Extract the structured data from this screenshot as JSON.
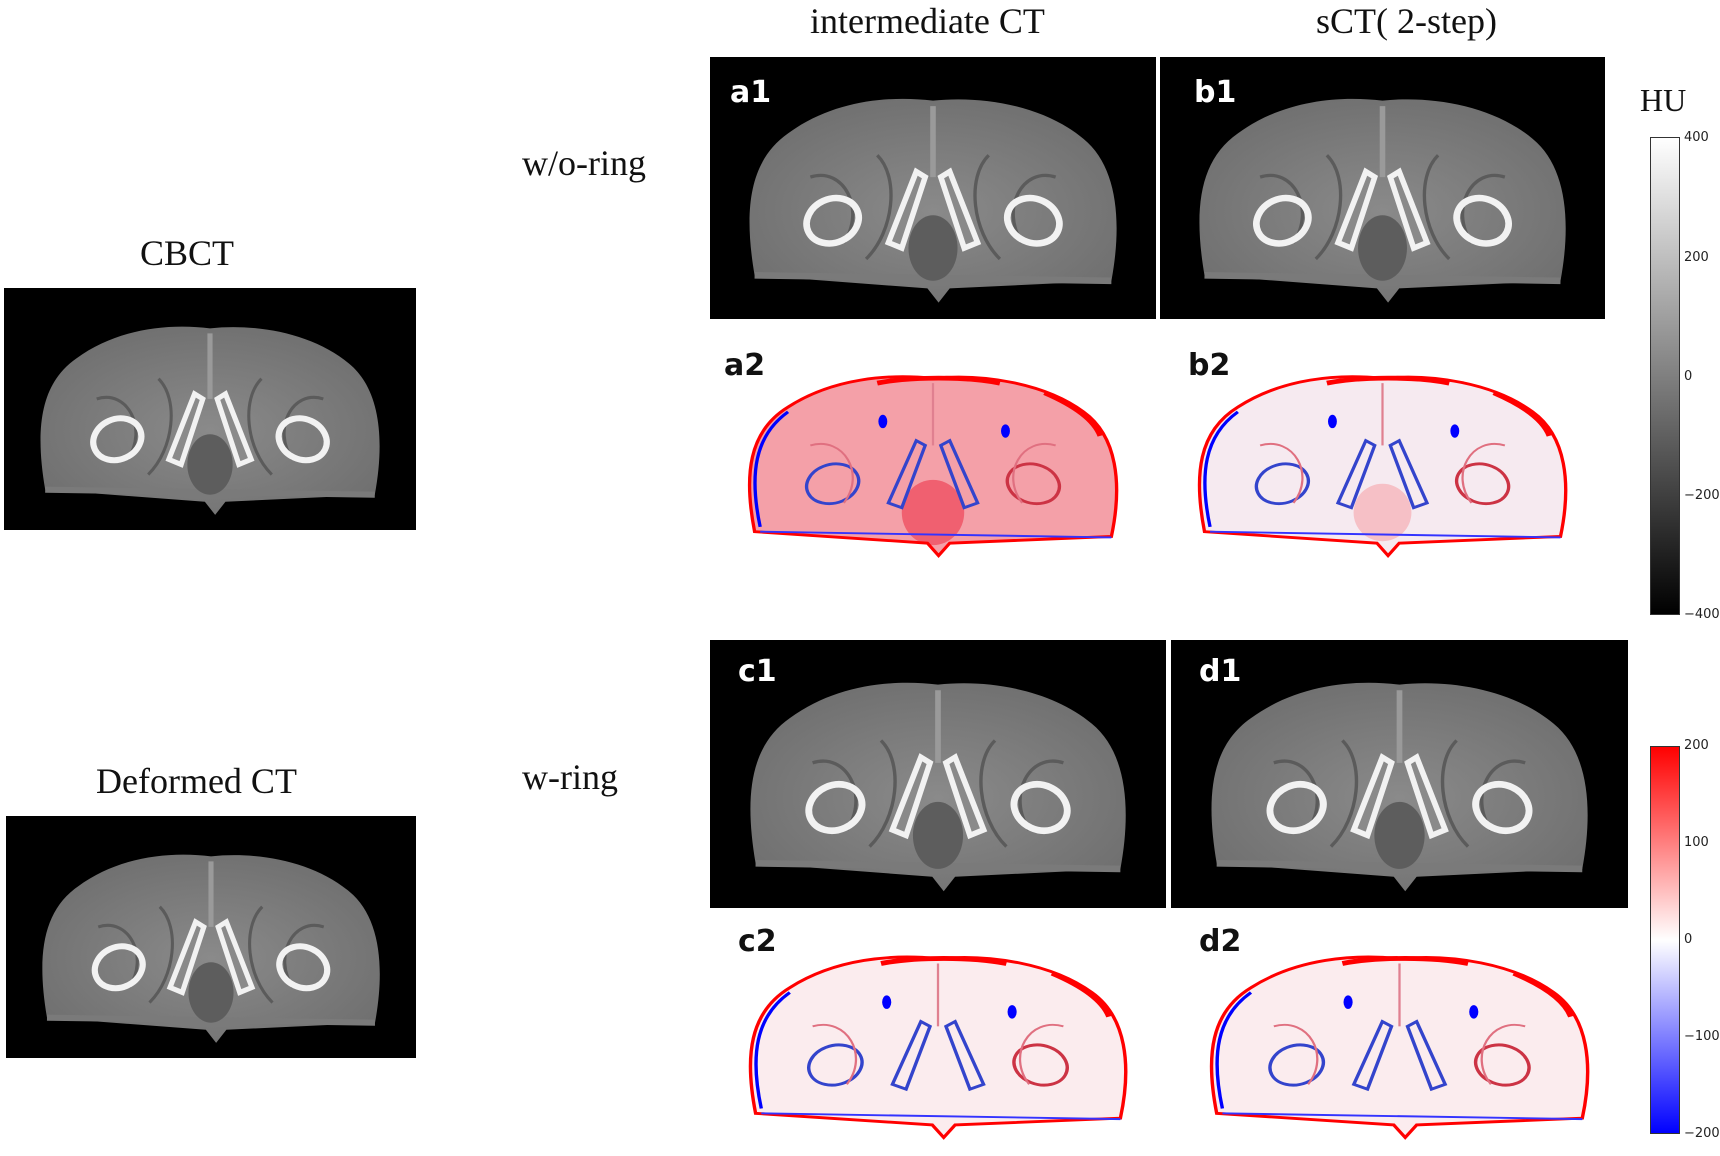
{
  "column_headers": {
    "intermediate": "intermediate CT",
    "sct": "sCT( 2-step)"
  },
  "row_labels": {
    "without_ring": "w/o-ring",
    "with_ring": "w-ring"
  },
  "reference_labels": {
    "cbct": "CBCT",
    "deformed": "Deformed CT"
  },
  "panel_ids": {
    "a1": "a1",
    "b1": "b1",
    "a2": "a2",
    "b2": "b2",
    "c1": "c1",
    "d1": "d1",
    "c2": "c2",
    "d2": "d2"
  },
  "hu_colorbar": {
    "unit": "HU",
    "ticks": [
      "400",
      "200",
      "0",
      "−200",
      "−400"
    ]
  },
  "diff_colorbar": {
    "ticks": [
      "200",
      "100",
      "0",
      "−100",
      "−200"
    ]
  },
  "colors": {
    "diff_positive": "#ff0000",
    "diff_negative": "#0000ff",
    "diff_zero": "#ffffff",
    "ct_background": "#000000"
  }
}
